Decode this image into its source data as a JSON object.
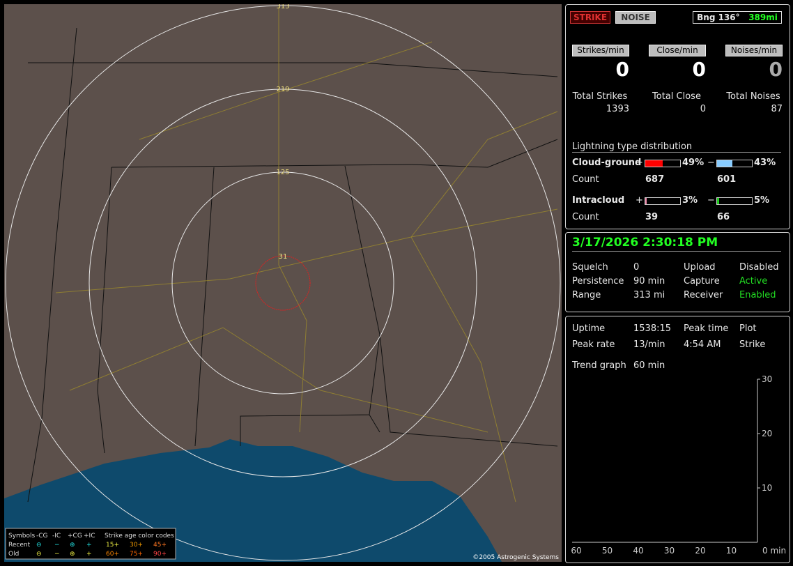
{
  "controls": {
    "strike": "STRIKE",
    "noise": "NOISE",
    "bearing": "Bng 136°",
    "distance": "389mi"
  },
  "rates": [
    {
      "label": "Strikes/min",
      "value": "0"
    },
    {
      "label": "Close/min",
      "value": "0"
    },
    {
      "label": "Noises/min",
      "value": "0"
    }
  ],
  "totals": [
    {
      "label": "Total Strikes",
      "value": "1393"
    },
    {
      "label": "Total Close",
      "value": "0"
    },
    {
      "label": "Total Noises",
      "value": "87"
    }
  ],
  "distribution": {
    "title": "Lightning type distribution",
    "count_label": "Count",
    "rows": [
      {
        "label": "Cloud-ground",
        "pos_sign": "+",
        "pos_pct": {
          "value": 49,
          "label": "49%"
        },
        "neg_sign": "−",
        "neg_pct": {
          "value": 43,
          "label": "43%"
        },
        "pos_count": "687",
        "neg_count": "601"
      },
      {
        "label": "Intracloud",
        "pos_sign": "+",
        "pos_pct": {
          "value": 3,
          "label": "3%"
        },
        "neg_sign": "−",
        "neg_pct": {
          "value": 5,
          "label": "5%"
        },
        "pos_count": "39",
        "neg_count": "66"
      }
    ]
  },
  "datetime": "3/17/2026 2:30:18 PM",
  "status": [
    [
      "Squelch",
      "0",
      "Upload",
      "Disabled"
    ],
    [
      "Persistence",
      "90 min",
      "Capture",
      "Active"
    ],
    [
      "Range",
      "313 mi",
      "Receiver",
      "Enabled"
    ]
  ],
  "stats": [
    [
      "Uptime",
      "1538:15",
      "Peak time",
      "Plot"
    ],
    [
      "Peak rate",
      "13/min",
      "4:54 AM",
      "Strike"
    ]
  ],
  "trend": {
    "label": "Trend graph",
    "window": "60 min",
    "ylim": [
      0,
      30
    ],
    "yticks": [
      10,
      20,
      30
    ],
    "xlim": [
      60,
      0
    ],
    "xticks": [
      60,
      50,
      40,
      30,
      20,
      10,
      {
        "value": 0,
        "label": "0 min"
      }
    ]
  },
  "map": {
    "rings": [
      "313",
      "219",
      "125",
      "31"
    ],
    "legend": {
      "header": [
        "Symbols",
        "-CG",
        "-IC",
        "+CG",
        "+IC",
        "Strike age color codes"
      ],
      "recent": [
        "Recent",
        "⊖",
        "−",
        "⊕",
        "+",
        "15+",
        "30+",
        "45+"
      ],
      "old": [
        "Old",
        "⊖",
        "−",
        "⊕",
        "+",
        "60+",
        "75+",
        "90+"
      ]
    },
    "copyright": "©2005 Astrogenic Systems"
  }
}
